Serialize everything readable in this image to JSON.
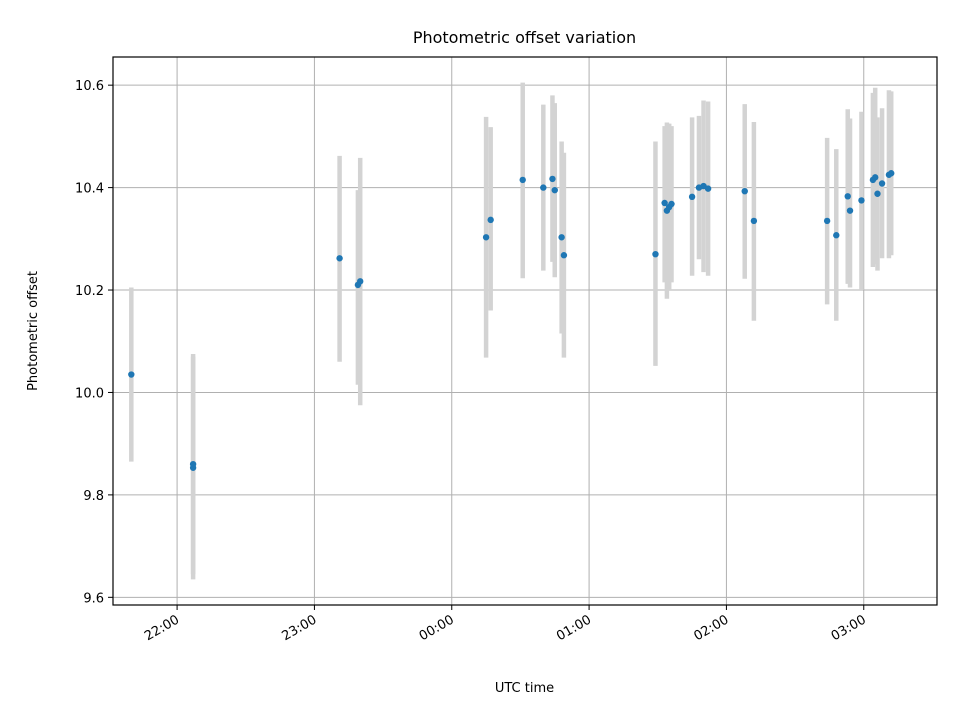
{
  "chart_data": {
    "type": "scatter",
    "title": "Photometric offset variation",
    "xlabel": "UTC time",
    "ylabel": "Photometric offset",
    "x_ticks": [
      "22:00",
      "23:00",
      "00:00",
      "01:00",
      "02:00",
      "03:00"
    ],
    "y_ticks": [
      "9.6",
      "9.8",
      "10.0",
      "10.2",
      "10.4",
      "10.6"
    ],
    "xlim": [
      "21:32",
      "03:32"
    ],
    "ylim": [
      9.585,
      10.655
    ],
    "grid": true,
    "colors": {
      "points": "#1f77b4",
      "errorbars": "#d3d3d3",
      "grid": "#b0b0b0"
    },
    "points": [
      {
        "t": "21:40",
        "y": 10.035,
        "lo": 9.865,
        "hi": 10.205
      },
      {
        "t": "22:07",
        "y": 9.853,
        "lo": 9.635,
        "hi": 10.07
      },
      {
        "t": "22:07",
        "y": 9.86,
        "lo": 9.645,
        "hi": 10.075
      },
      {
        "t": "23:11",
        "y": 10.262,
        "lo": 10.06,
        "hi": 10.462
      },
      {
        "t": "23:19",
        "y": 10.21,
        "lo": 10.015,
        "hi": 10.395
      },
      {
        "t": "23:20",
        "y": 10.217,
        "lo": 9.975,
        "hi": 10.458
      },
      {
        "t": "00:15",
        "y": 10.303,
        "lo": 10.068,
        "hi": 10.538
      },
      {
        "t": "00:17",
        "y": 10.337,
        "lo": 10.16,
        "hi": 10.518
      },
      {
        "t": "00:31",
        "y": 10.415,
        "lo": 10.223,
        "hi": 10.605
      },
      {
        "t": "00:40",
        "y": 10.4,
        "lo": 10.238,
        "hi": 10.562
      },
      {
        "t": "00:44",
        "y": 10.417,
        "lo": 10.255,
        "hi": 10.58
      },
      {
        "t": "00:45",
        "y": 10.395,
        "lo": 10.225,
        "hi": 10.565
      },
      {
        "t": "00:48",
        "y": 10.303,
        "lo": 10.115,
        "hi": 10.49
      },
      {
        "t": "00:49",
        "y": 10.268,
        "lo": 10.068,
        "hi": 10.468
      },
      {
        "t": "01:29",
        "y": 10.27,
        "lo": 10.052,
        "hi": 10.49
      },
      {
        "t": "01:33",
        "y": 10.37,
        "lo": 10.215,
        "hi": 10.52
      },
      {
        "t": "01:34",
        "y": 10.355,
        "lo": 10.183,
        "hi": 10.527
      },
      {
        "t": "01:35",
        "y": 10.362,
        "lo": 10.2,
        "hi": 10.525
      },
      {
        "t": "01:36",
        "y": 10.368,
        "lo": 10.215,
        "hi": 10.52
      },
      {
        "t": "01:45",
        "y": 10.382,
        "lo": 10.228,
        "hi": 10.537
      },
      {
        "t": "01:48",
        "y": 10.4,
        "lo": 10.26,
        "hi": 10.54
      },
      {
        "t": "01:50",
        "y": 10.403,
        "lo": 10.235,
        "hi": 10.57
      },
      {
        "t": "01:52",
        "y": 10.398,
        "lo": 10.228,
        "hi": 10.568
      },
      {
        "t": "02:08",
        "y": 10.393,
        "lo": 10.222,
        "hi": 10.563
      },
      {
        "t": "02:12",
        "y": 10.335,
        "lo": 10.14,
        "hi": 10.528
      },
      {
        "t": "02:44",
        "y": 10.335,
        "lo": 10.172,
        "hi": 10.497
      },
      {
        "t": "02:48",
        "y": 10.307,
        "lo": 10.14,
        "hi": 10.475
      },
      {
        "t": "02:53",
        "y": 10.383,
        "lo": 10.212,
        "hi": 10.553
      },
      {
        "t": "02:54",
        "y": 10.355,
        "lo": 10.205,
        "hi": 10.535
      },
      {
        "t": "02:59",
        "y": 10.375,
        "lo": 10.2,
        "hi": 10.548
      },
      {
        "t": "03:04",
        "y": 10.415,
        "lo": 10.245,
        "hi": 10.585
      },
      {
        "t": "03:05",
        "y": 10.42,
        "lo": 10.25,
        "hi": 10.595
      },
      {
        "t": "03:06",
        "y": 10.388,
        "lo": 10.238,
        "hi": 10.537
      },
      {
        "t": "03:08",
        "y": 10.408,
        "lo": 10.262,
        "hi": 10.555
      },
      {
        "t": "03:11",
        "y": 10.425,
        "lo": 10.262,
        "hi": 10.59
      },
      {
        "t": "03:12",
        "y": 10.428,
        "lo": 10.268,
        "hi": 10.588
      }
    ]
  }
}
